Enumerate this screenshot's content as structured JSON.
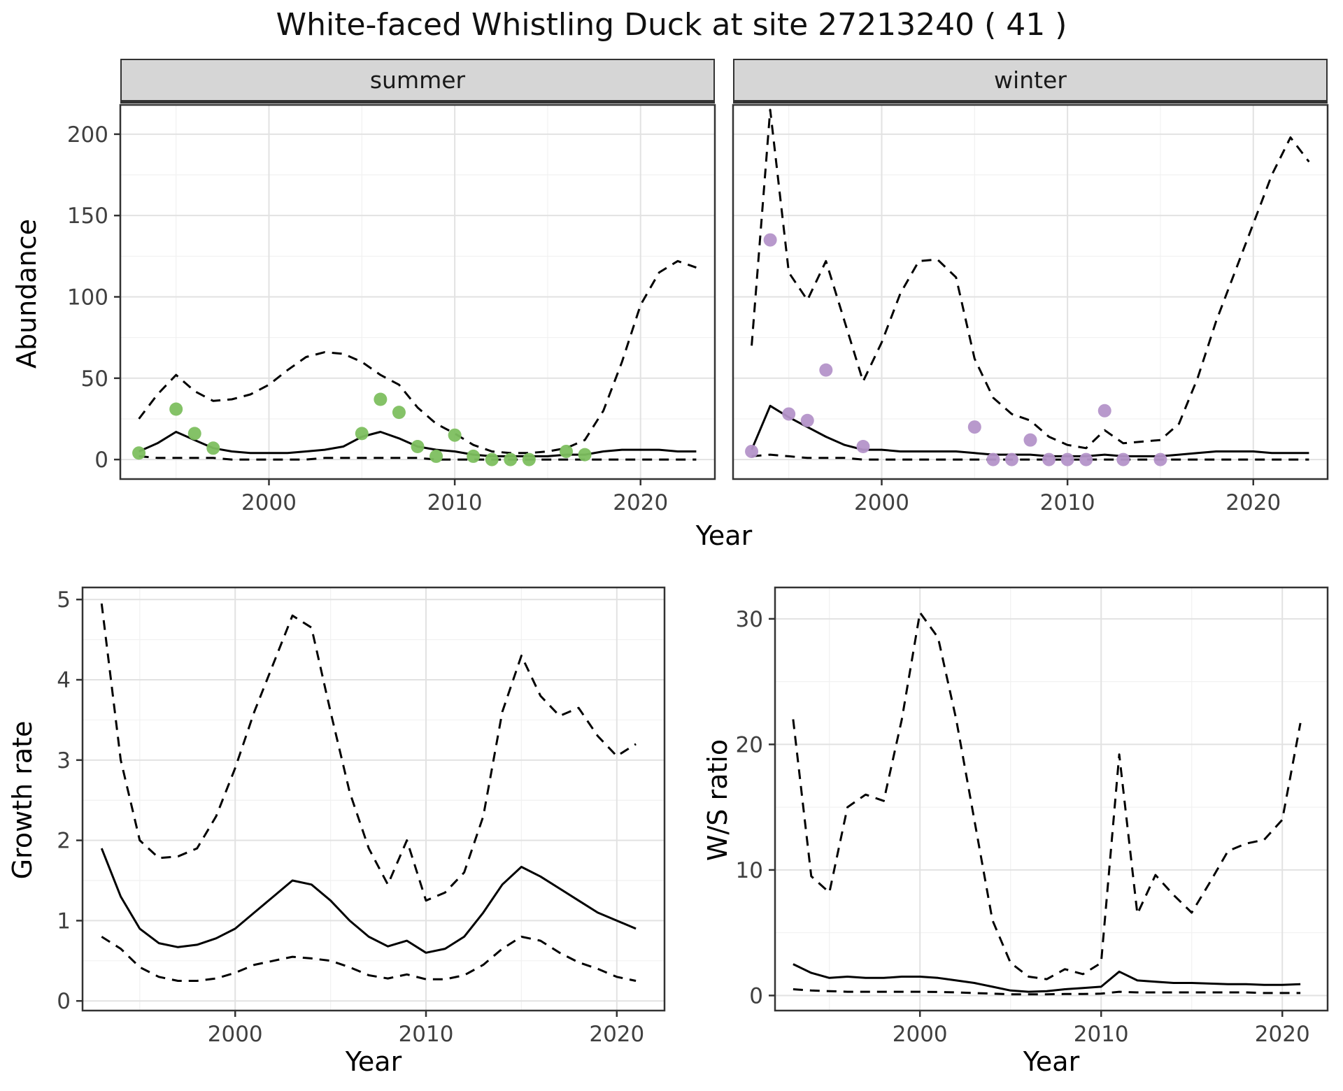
{
  "title": "White-faced Whistling Duck at site 27213240 ( 41 )",
  "colors": {
    "line": "#000000",
    "summer_point": "#7dbf5f",
    "winter_point": "#b494c9",
    "grid_major": "#e2e2e2",
    "grid_minor": "#f1f1f1",
    "panel_border": "#333333",
    "tick_text": "#404040",
    "strip_bg": "#d6d6d6"
  },
  "chart_data": [
    {
      "id": "abundance-summer",
      "type": "line+scatter",
      "facet_label": "summer",
      "xlabel": "Year",
      "ylabel": "Abundance",
      "xlim": [
        1992,
        2024
      ],
      "ylim": [
        -12,
        218
      ],
      "xticks": [
        2000,
        2010,
        2020
      ],
      "yticks": [
        0,
        50,
        100,
        150,
        200
      ],
      "x": [
        1993,
        1994,
        1995,
        1996,
        1997,
        1998,
        1999,
        2000,
        2001,
        2002,
        2003,
        2004,
        2005,
        2006,
        2007,
        2008,
        2009,
        2010,
        2011,
        2012,
        2013,
        2014,
        2015,
        2016,
        2017,
        2018,
        2019,
        2020,
        2021,
        2022,
        2023
      ],
      "series": [
        {
          "name": "mean",
          "style": "solid",
          "values": [
            5,
            10,
            17,
            12,
            7,
            5,
            4,
            4,
            4,
            5,
            6,
            8,
            14,
            17,
            13,
            8,
            6,
            5,
            3,
            2,
            2,
            2,
            2,
            3,
            3,
            5,
            6,
            6,
            6,
            5,
            5
          ]
        },
        {
          "name": "upper",
          "style": "dashed",
          "values": [
            25,
            40,
            52,
            42,
            36,
            37,
            40,
            46,
            55,
            63,
            66,
            65,
            60,
            52,
            46,
            32,
            22,
            16,
            9,
            5,
            4,
            4,
            5,
            7,
            12,
            30,
            60,
            95,
            115,
            122,
            118
          ]
        },
        {
          "name": "lower",
          "style": "dashed",
          "values": [
            2,
            1,
            1,
            1,
            1,
            0,
            0,
            0,
            0,
            0,
            1,
            1,
            1,
            1,
            1,
            1,
            0,
            0,
            0,
            0,
            0,
            0,
            0,
            0,
            0,
            0,
            0,
            0,
            0,
            0,
            0
          ]
        }
      ],
      "points": {
        "color_key": "summer_point",
        "x": [
          1993,
          1995,
          1996,
          1997,
          2005,
          2006,
          2007,
          2008,
          2009,
          2010,
          2011,
          2012,
          2013,
          2014,
          2016,
          2017
        ],
        "y": [
          4,
          31,
          16,
          7,
          16,
          37,
          29,
          8,
          2,
          15,
          2,
          0,
          0,
          0,
          5,
          3
        ]
      }
    },
    {
      "id": "abundance-winter",
      "type": "line+scatter",
      "facet_label": "winter",
      "xlabel": "Year",
      "ylabel": "Abundance",
      "xlim": [
        1992,
        2024
      ],
      "ylim": [
        -12,
        218
      ],
      "xticks": [
        2000,
        2010,
        2020
      ],
      "yticks": [
        0,
        50,
        100,
        150,
        200
      ],
      "x": [
        1993,
        1994,
        1995,
        1996,
        1997,
        1998,
        1999,
        2000,
        2001,
        2002,
        2003,
        2004,
        2005,
        2006,
        2007,
        2008,
        2009,
        2010,
        2011,
        2012,
        2013,
        2014,
        2015,
        2016,
        2017,
        2018,
        2019,
        2020,
        2021,
        2022,
        2023
      ],
      "series": [
        {
          "name": "mean",
          "style": "solid",
          "values": [
            6,
            33,
            26,
            20,
            14,
            9,
            6,
            6,
            5,
            5,
            5,
            5,
            4,
            3,
            3,
            3,
            2,
            2,
            2,
            3,
            2,
            2,
            2,
            3,
            4,
            5,
            5,
            5,
            4,
            4,
            4
          ]
        },
        {
          "name": "upper",
          "style": "dashed",
          "values": [
            70,
            215,
            115,
            98,
            122,
            85,
            48,
            72,
            102,
            122,
            123,
            112,
            62,
            38,
            28,
            24,
            14,
            9,
            7,
            18,
            10,
            11,
            12,
            22,
            50,
            85,
            115,
            145,
            175,
            198,
            183
          ]
        },
        {
          "name": "lower",
          "style": "dashed",
          "values": [
            2,
            3,
            2,
            1,
            1,
            1,
            0,
            0,
            0,
            0,
            0,
            0,
            0,
            0,
            0,
            0,
            0,
            0,
            0,
            0,
            0,
            0,
            0,
            0,
            0,
            0,
            0,
            0,
            0,
            0,
            0
          ]
        }
      ],
      "points": {
        "color_key": "winter_point",
        "x": [
          1993,
          1994,
          1995,
          1996,
          1997,
          1999,
          2005,
          2006,
          2007,
          2008,
          2009,
          2010,
          2011,
          2012,
          2013,
          2015
        ],
        "y": [
          5,
          135,
          28,
          24,
          55,
          8,
          20,
          0,
          0,
          12,
          0,
          0,
          0,
          30,
          0,
          0
        ]
      }
    },
    {
      "id": "growth-rate",
      "type": "line",
      "xlabel": "Year",
      "ylabel": "Growth rate",
      "xlim": [
        1992,
        2022.5
      ],
      "ylim": [
        -0.12,
        5.15
      ],
      "xticks": [
        2000,
        2010,
        2020
      ],
      "yticks": [
        0,
        1,
        2,
        3,
        4,
        5
      ],
      "x": [
        1993,
        1994,
        1995,
        1996,
        1997,
        1998,
        1999,
        2000,
        2001,
        2002,
        2003,
        2004,
        2005,
        2006,
        2007,
        2008,
        2009,
        2010,
        2011,
        2012,
        2013,
        2014,
        2015,
        2016,
        2017,
        2018,
        2019,
        2020,
        2021
      ],
      "series": [
        {
          "name": "mean",
          "style": "solid",
          "values": [
            1.9,
            1.3,
            0.9,
            0.72,
            0.67,
            0.7,
            0.78,
            0.9,
            1.1,
            1.3,
            1.5,
            1.45,
            1.25,
            1.0,
            0.8,
            0.68,
            0.75,
            0.6,
            0.65,
            0.8,
            1.1,
            1.45,
            1.67,
            1.55,
            1.4,
            1.25,
            1.1,
            1.0,
            0.9
          ]
        },
        {
          "name": "upper",
          "style": "dashed",
          "values": [
            4.95,
            3.0,
            2.0,
            1.78,
            1.8,
            1.9,
            2.3,
            2.9,
            3.6,
            4.2,
            4.8,
            4.65,
            3.6,
            2.6,
            1.9,
            1.45,
            2.0,
            1.25,
            1.35,
            1.6,
            2.3,
            3.6,
            4.3,
            3.8,
            3.55,
            3.65,
            3.3,
            3.05,
            3.2
          ]
        },
        {
          "name": "lower",
          "style": "dashed",
          "values": [
            0.8,
            0.65,
            0.42,
            0.3,
            0.25,
            0.25,
            0.28,
            0.35,
            0.45,
            0.5,
            0.55,
            0.53,
            0.5,
            0.42,
            0.32,
            0.28,
            0.33,
            0.27,
            0.27,
            0.32,
            0.45,
            0.65,
            0.8,
            0.75,
            0.6,
            0.48,
            0.4,
            0.3,
            0.25
          ]
        }
      ]
    },
    {
      "id": "ws-ratio",
      "type": "line",
      "xlabel": "Year",
      "ylabel": "W/S ratio",
      "xlim": [
        1992,
        2022.5
      ],
      "ylim": [
        -1.2,
        32.5
      ],
      "xticks": [
        2000,
        2010,
        2020
      ],
      "yticks": [
        0,
        10,
        20,
        30
      ],
      "x": [
        1993,
        1994,
        1995,
        1996,
        1997,
        1998,
        1999,
        2000,
        2001,
        2002,
        2003,
        2004,
        2005,
        2006,
        2007,
        2008,
        2009,
        2010,
        2011,
        2012,
        2013,
        2014,
        2015,
        2016,
        2017,
        2018,
        2019,
        2020,
        2021
      ],
      "series": [
        {
          "name": "mean",
          "style": "solid",
          "values": [
            2.5,
            1.8,
            1.4,
            1.5,
            1.4,
            1.4,
            1.5,
            1.5,
            1.4,
            1.2,
            1.0,
            0.7,
            0.4,
            0.3,
            0.35,
            0.5,
            0.6,
            0.7,
            1.9,
            1.2,
            1.1,
            1.0,
            1.0,
            0.95,
            0.9,
            0.9,
            0.85,
            0.85,
            0.9
          ]
        },
        {
          "name": "upper",
          "style": "dashed",
          "values": [
            22,
            9.5,
            8.2,
            15,
            16,
            15.5,
            22,
            30.5,
            28.5,
            22,
            14,
            6,
            2.6,
            1.5,
            1.3,
            2.1,
            1.7,
            2.6,
            19.2,
            6.5,
            9.6,
            8,
            6.6,
            9,
            11.5,
            12.1,
            12.4,
            14,
            21.7
          ]
        },
        {
          "name": "lower",
          "style": "dashed",
          "values": [
            0.5,
            0.4,
            0.35,
            0.3,
            0.3,
            0.3,
            0.3,
            0.3,
            0.28,
            0.25,
            0.2,
            0.15,
            0.1,
            0.1,
            0.1,
            0.12,
            0.12,
            0.15,
            0.3,
            0.25,
            0.25,
            0.25,
            0.25,
            0.25,
            0.25,
            0.25,
            0.2,
            0.2,
            0.2
          ]
        }
      ]
    }
  ]
}
